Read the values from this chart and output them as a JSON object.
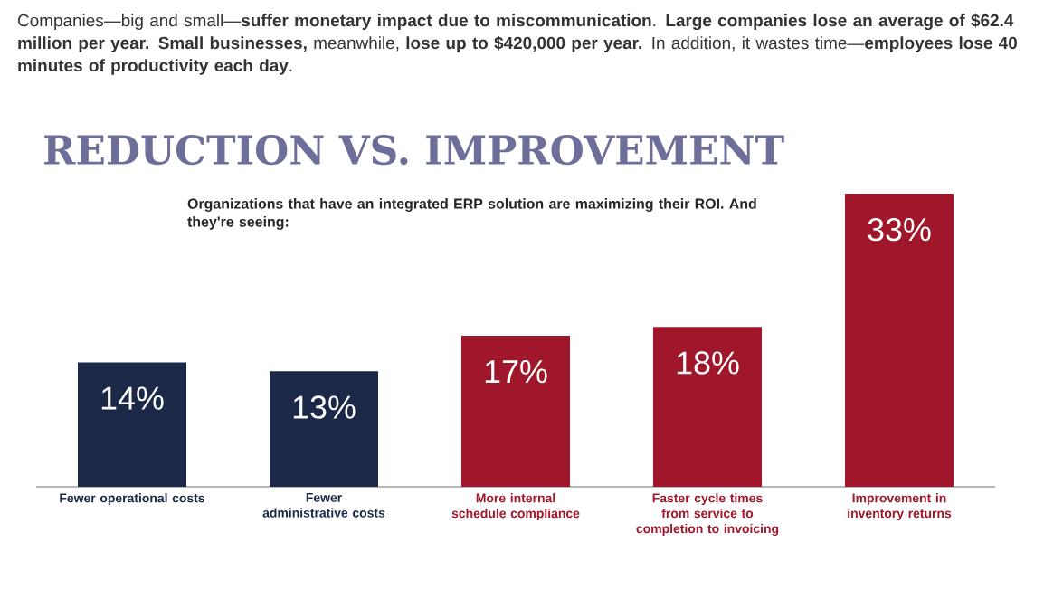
{
  "chart_data": {
    "type": "bar",
    "title": "REDUCTION VS. IMPROVEMENT",
    "subtitle": "Organizations that have an integrated ERP solution are maximizing their ROI. And they're seeing:",
    "annotations": [
      "Companies—big and small—**suffer monetary impact due to miscommunication**. **Large companies lose an average of $62.4 million per year. Small businesses,** meanwhile, **lose up to $420,000 per year.** In addition, it wastes time—**employees lose 40 minutes of productivity each day**."
    ],
    "categories": [
      "Fewer operational costs",
      "Fewer administrative costs",
      "More internal schedule compliance",
      "Faster cycle times from service to completion to invoicing",
      "Improvement in inventory returns"
    ],
    "values": [
      14,
      13,
      17,
      18,
      33
    ],
    "colors": [
      "#1c2847",
      "#1c2847",
      "#a0162a",
      "#a0162a",
      "#a0162a"
    ],
    "value_labels": [
      "14%",
      "13%",
      "17%",
      "18%",
      "33%"
    ]
  }
}
